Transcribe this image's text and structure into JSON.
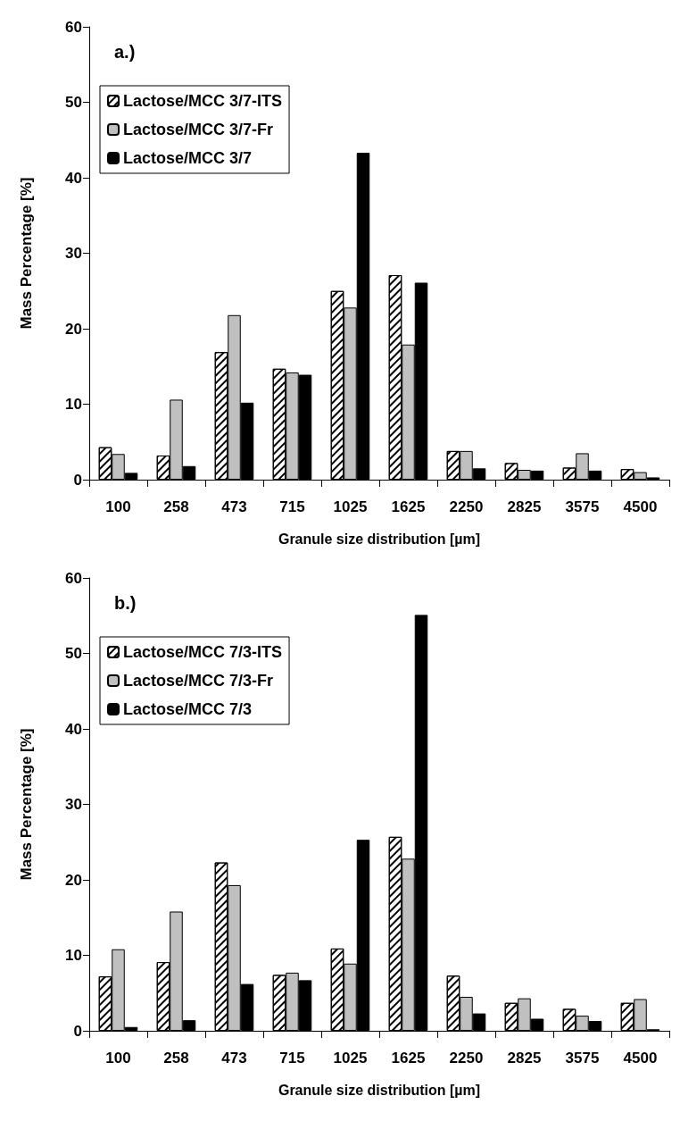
{
  "chart_data": [
    {
      "type": "bar",
      "annotations": [
        "a.)"
      ],
      "xlabel": "Granule size distribution [µm]",
      "ylabel": "Mass Percentage [%]",
      "categories": [
        "100",
        "258",
        "473",
        "715",
        "1025",
        "1625",
        "2250",
        "2825",
        "3575",
        "4500"
      ],
      "series": [
        {
          "name": "Lactose/MCC 3/7-ITS",
          "color": "#ffffff",
          "values": [
            4.3,
            3.2,
            16.9,
            14.7,
            25.0,
            27.1,
            3.8,
            2.2,
            1.6,
            1.4
          ]
        },
        {
          "name": "Lactose/MCC 3/7-Fr",
          "color": "#c0c0c0",
          "values": [
            3.4,
            10.6,
            21.8,
            14.2,
            22.8,
            17.9,
            3.8,
            1.3,
            3.5,
            1.0
          ]
        },
        {
          "name": "Lactose/MCC 3/7",
          "color": "#000000",
          "values": [
            0.9,
            1.8,
            10.2,
            13.9,
            43.3,
            26.1,
            1.5,
            1.2,
            1.2,
            0.3
          ]
        }
      ],
      "ylim": [
        0,
        60
      ],
      "yticks": [
        0,
        10,
        20,
        30,
        40,
        50,
        60
      ],
      "grid": false,
      "legend": "top left"
    },
    {
      "type": "bar",
      "annotations": [
        "b.)"
      ],
      "xlabel": "Granule size distribution [µm]",
      "ylabel": "Mass Percentage [%]",
      "categories": [
        "100",
        "258",
        "473",
        "715",
        "1025",
        "1625",
        "2250",
        "2825",
        "3575",
        "4500"
      ],
      "series": [
        {
          "name": "Lactose/MCC 7/3-ITS",
          "color": "#ffffff",
          "values": [
            7.2,
            9.1,
            22.3,
            7.4,
            10.9,
            25.7,
            7.3,
            3.7,
            2.9,
            3.7
          ]
        },
        {
          "name": "Lactose/MCC 7/3-Fr",
          "color": "#c0c0c0",
          "values": [
            10.8,
            15.8,
            19.3,
            7.7,
            8.9,
            22.8,
            4.5,
            4.3,
            2.0,
            4.2
          ]
        },
        {
          "name": "Lactose/MCC 7/3",
          "color": "#000000",
          "values": [
            0.5,
            1.4,
            6.2,
            6.7,
            25.3,
            55.1,
            2.3,
            1.6,
            1.3,
            0.2
          ]
        }
      ],
      "ylim": [
        0,
        60
      ],
      "yticks": [
        0,
        10,
        20,
        30,
        40,
        50,
        60
      ],
      "grid": false,
      "legend": "top left"
    }
  ]
}
